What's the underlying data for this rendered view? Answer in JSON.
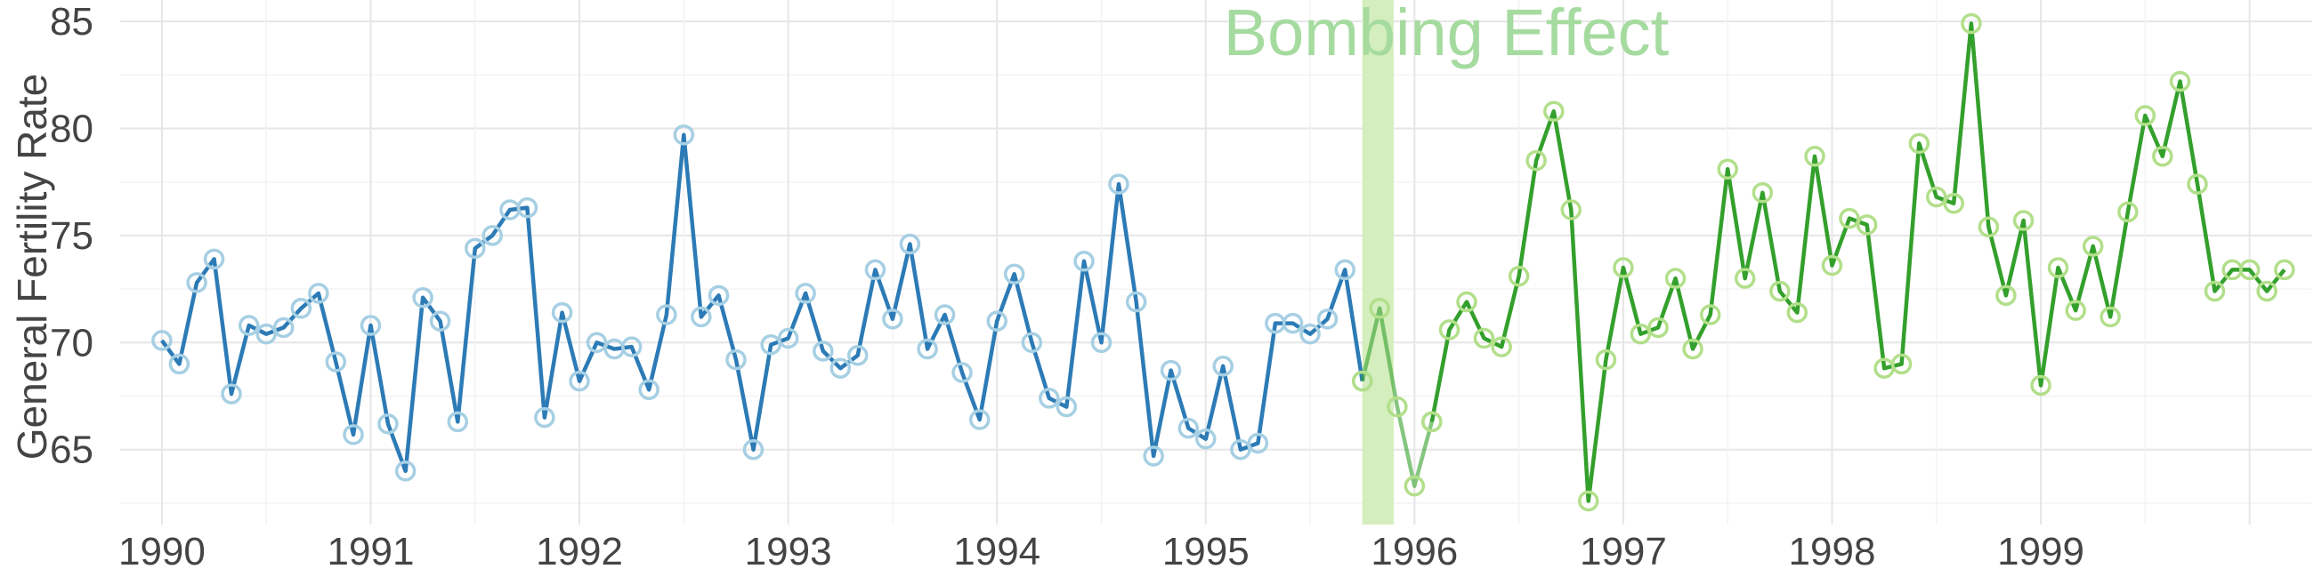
{
  "chart_data": {
    "type": "line",
    "title": "",
    "xlabel": "",
    "ylabel": "General Fertility Rate",
    "xlim": [
      1989.8,
      2000.3
    ],
    "ylim": [
      61.5,
      86
    ],
    "yticks": [
      65,
      70,
      75,
      80,
      85
    ],
    "xticks": [
      1990,
      1991,
      1992,
      1993,
      1994,
      1995,
      1996,
      1997,
      1998,
      1999
    ],
    "grid": true,
    "legend": "none",
    "annotation": {
      "text": "Bombing Effect",
      "x_start": 1995.75,
      "x_end": 1995.9,
      "color": "#a6dba0"
    },
    "colors": {
      "pre_line": "#2c7bb6",
      "pre_marker": "#a6cfe3",
      "post_line": "#33a02c",
      "post_marker": "#b2df8a",
      "band": "#d4eebd",
      "grid_major": "#e6e6e6",
      "grid_minor": "#f3f3f3"
    },
    "series": [
      {
        "segment": "pre",
        "x": [
          1990.0,
          1990.083,
          1990.167,
          1990.25,
          1990.333,
          1990.417,
          1990.5,
          1990.583,
          1990.667,
          1990.75,
          1990.833,
          1990.917,
          1991.0,
          1991.083,
          1991.167,
          1991.25,
          1991.333,
          1991.417,
          1991.5,
          1991.583,
          1991.667,
          1991.75,
          1991.833,
          1991.917,
          1992.0,
          1992.083,
          1992.167,
          1992.25,
          1992.333,
          1992.417,
          1992.5,
          1992.583,
          1992.667,
          1992.75,
          1992.833,
          1992.917,
          1993.0,
          1993.083,
          1993.167,
          1993.25,
          1993.333,
          1993.417,
          1993.5,
          1993.583,
          1993.667,
          1993.75,
          1993.833,
          1993.917,
          1994.0,
          1994.083,
          1994.167,
          1994.25,
          1994.333,
          1994.417,
          1994.5,
          1994.583,
          1994.667,
          1994.75,
          1994.833,
          1994.917,
          1995.0,
          1995.083,
          1995.167,
          1995.25,
          1995.333,
          1995.417,
          1995.5,
          1995.583,
          1995.667,
          1995.75
        ],
        "values": [
          70.1,
          69.0,
          72.8,
          73.9,
          67.6,
          70.8,
          70.4,
          70.7,
          71.6,
          72.3,
          69.1,
          65.7,
          70.8,
          66.2,
          64.0,
          72.1,
          71.0,
          66.3,
          74.4,
          75.0,
          76.2,
          76.3,
          66.5,
          71.4,
          68.2,
          70.0,
          69.7,
          69.8,
          67.8,
          71.3,
          79.7,
          71.2,
          72.2,
          69.2,
          65.0,
          69.9,
          70.2,
          72.3,
          69.6,
          68.8,
          69.4,
          73.4,
          71.1,
          74.6,
          69.7,
          71.3,
          68.6,
          66.4,
          71.0,
          73.2,
          70.0,
          67.4,
          67.0,
          73.8,
          70.0,
          77.4,
          71.9,
          64.7,
          68.7,
          66.0,
          65.5,
          68.9,
          65.0,
          65.3,
          70.9,
          70.9,
          70.4,
          71.1,
          73.4,
          68.2
        ]
      },
      {
        "segment": "transition",
        "x": [
          1995.75,
          1995.833,
          1995.917,
          1996.0,
          1996.083
        ],
        "values": [
          68.2,
          71.6,
          67.0,
          63.3,
          66.3
        ]
      },
      {
        "segment": "post",
        "x": [
          1996.083,
          1996.167,
          1996.25,
          1996.333,
          1996.417,
          1996.5,
          1996.583,
          1996.667,
          1996.75,
          1996.833,
          1996.917,
          1997.0,
          1997.083,
          1997.167,
          1997.25,
          1997.333,
          1997.417,
          1997.5,
          1997.583,
          1997.667,
          1997.75,
          1997.833,
          1997.917,
          1998.0,
          1998.083,
          1998.167,
          1998.25,
          1998.333,
          1998.417,
          1998.5,
          1998.583,
          1998.667,
          1998.75,
          1998.833,
          1998.917,
          1999.0,
          1999.083,
          1999.167,
          1999.25,
          1999.333,
          1999.417,
          1999.5,
          1999.583,
          1999.667,
          1999.75,
          1999.833,
          1999.917,
          2000.0,
          2000.083,
          2000.167
        ],
        "values": [
          66.3,
          70.6,
          71.9,
          70.2,
          69.8,
          73.1,
          78.5,
          80.8,
          76.2,
          62.6,
          69.2,
          73.5,
          70.4,
          70.7,
          73.0,
          69.7,
          71.3,
          78.1,
          73.0,
          77.0,
          72.4,
          71.4,
          78.7,
          73.6,
          75.8,
          75.5,
          68.8,
          69.0,
          79.3,
          76.8,
          76.5,
          84.9,
          75.4,
          72.2,
          75.7,
          68.0,
          73.5,
          71.5,
          74.5,
          71.2,
          76.1,
          80.6,
          78.7,
          82.2,
          77.4,
          72.4,
          73.4,
          73.4,
          72.4,
          73.4
        ]
      }
    ]
  }
}
